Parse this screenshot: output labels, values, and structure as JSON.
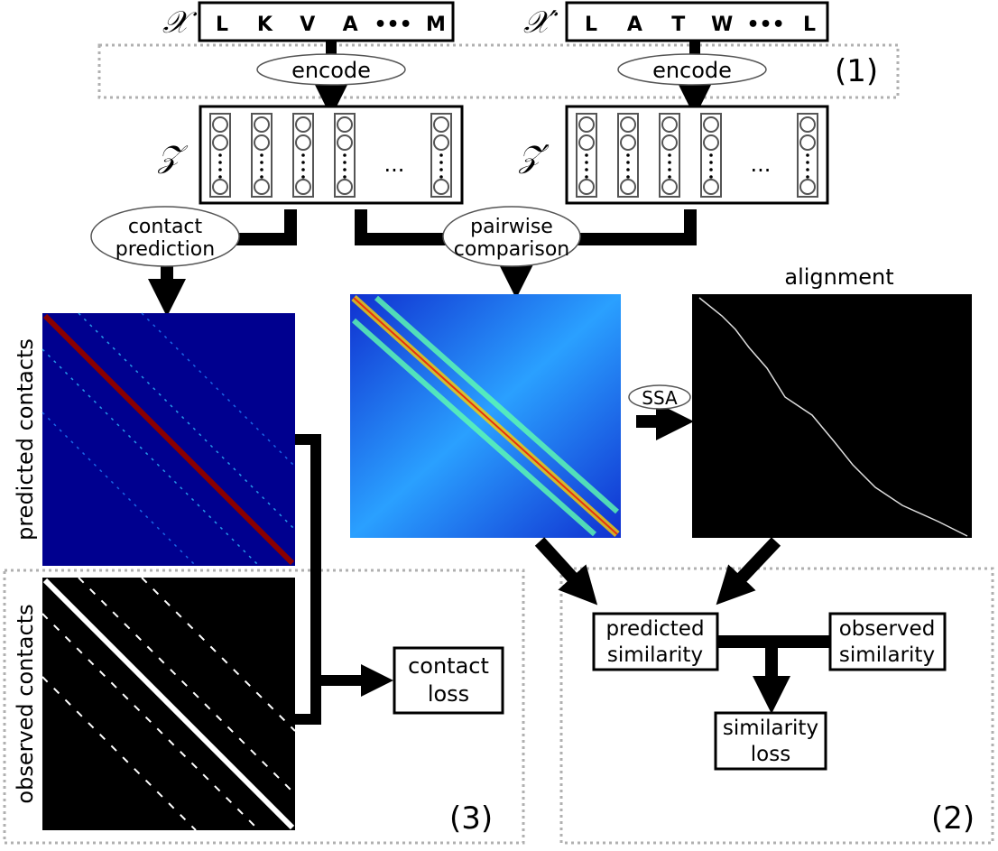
{
  "inputs": {
    "x_label": "𝒳",
    "x_seq": [
      "L",
      "K",
      "V",
      "A",
      "•••",
      "M"
    ],
    "xp_label": "𝒳′",
    "xp_seq": [
      "L",
      "A",
      "T",
      "W",
      "•••",
      "L"
    ]
  },
  "encode_label": "encode",
  "stage1_label": "(1)",
  "embeddings": {
    "z_label": "𝒵",
    "zp_label": "𝒵′",
    "ellipsis": "..."
  },
  "contact_prediction_label": [
    "contact",
    "prediction"
  ],
  "pairwise_comparison_label": [
    "pairwise",
    "comparison"
  ],
  "predicted_contacts_label": "predicted contacts",
  "observed_contacts_label": "observed contacts",
  "alignment_label": "alignment",
  "ssa_label": "SSA",
  "contact_loss_label": [
    "contact",
    "loss"
  ],
  "predicted_similarity_label": [
    "predicted",
    "similarity"
  ],
  "observed_similarity_label": [
    "observed",
    "similarity"
  ],
  "similarity_loss_label": [
    "similarity",
    "loss"
  ],
  "stage2_label": "(2)",
  "stage3_label": "(3)",
  "colors": {
    "heatmap_low": "#00008f",
    "heatmap_mid": "#3fd0ff",
    "heatmap_high": "#e8300f",
    "dotted": "#b0b0b0"
  }
}
